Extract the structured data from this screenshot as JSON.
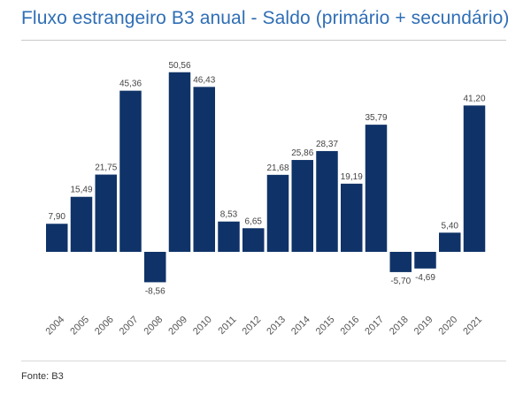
{
  "header": {
    "title": "Fluxo estrangeiro B3 anual - Saldo (primário + secundário)"
  },
  "footer": {
    "source": "Fonte: B3"
  },
  "colors": {
    "bar": "#0f3368",
    "title": "#2f6eb5"
  },
  "chart_data": {
    "type": "bar",
    "title": "Fluxo estrangeiro B3 anual - Saldo (primário + secundário)",
    "xlabel": "",
    "ylabel": "",
    "grid": false,
    "categories": [
      "2004",
      "2005",
      "2006",
      "2007",
      "2008",
      "2009",
      "2010",
      "2011",
      "2012",
      "2013",
      "2014",
      "2015",
      "2016",
      "2017",
      "2018",
      "2019",
      "2020",
      "2021"
    ],
    "values": [
      7.9,
      15.49,
      21.75,
      45.36,
      -8.56,
      50.56,
      46.43,
      8.53,
      6.65,
      21.68,
      25.86,
      28.37,
      19.19,
      35.79,
      -5.7,
      -4.69,
      5.4,
      41.2
    ],
    "data_labels": [
      "7,90",
      "15,49",
      "21,75",
      "45,36",
      "-8,56",
      "50,56",
      "46,43",
      "8,53",
      "6,65",
      "21,68",
      "25,86",
      "28,37",
      "19,19",
      "35,79",
      "-5,70",
      "-4,69",
      "5,40",
      "41,20"
    ],
    "ylim": [
      -10,
      55
    ]
  }
}
